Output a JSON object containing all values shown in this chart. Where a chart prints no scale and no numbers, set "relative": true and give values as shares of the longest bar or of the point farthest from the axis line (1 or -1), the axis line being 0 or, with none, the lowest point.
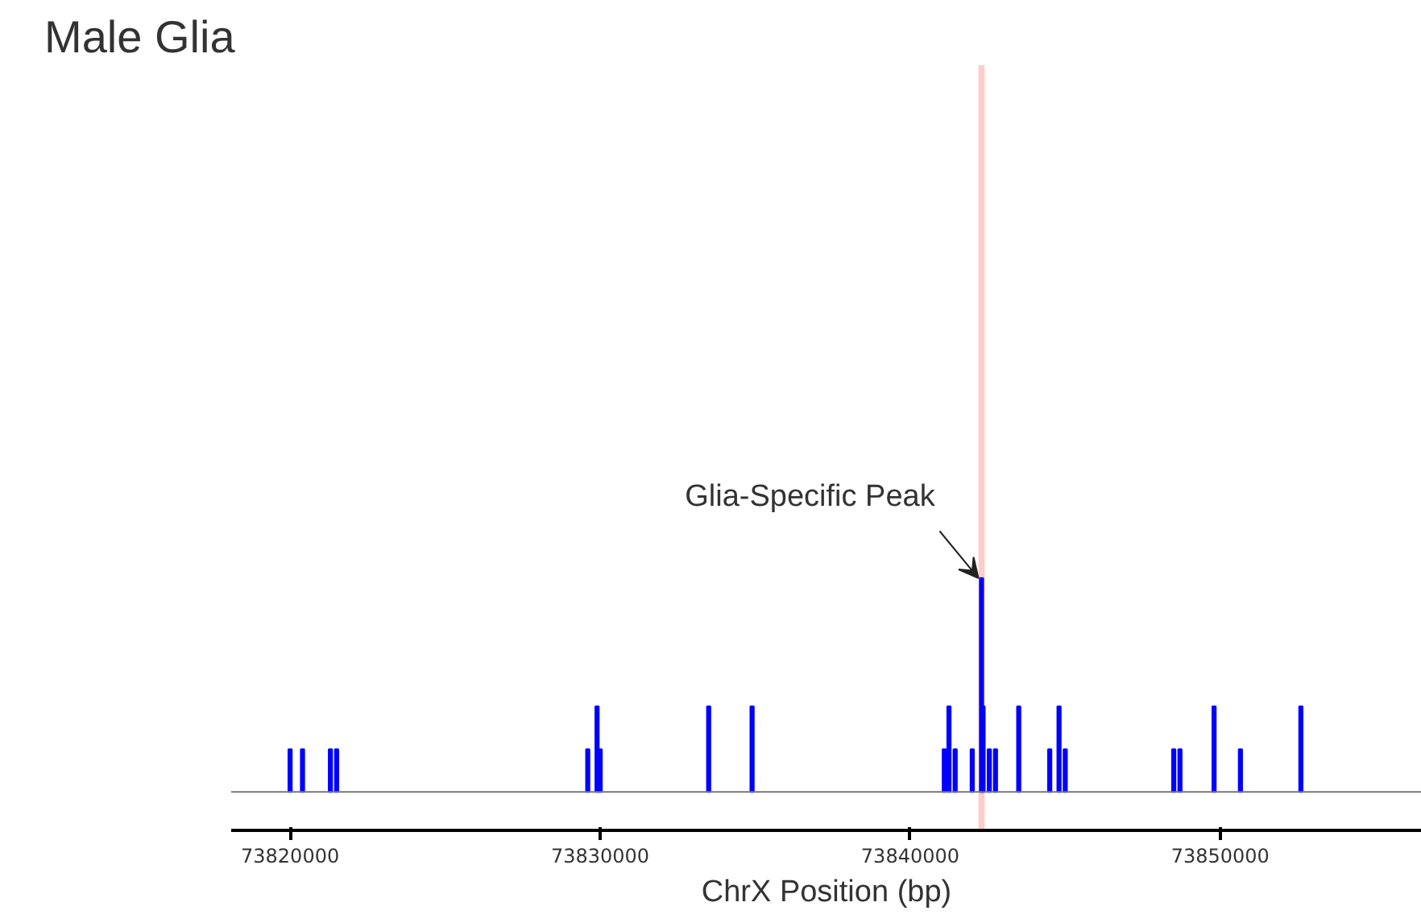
{
  "chart_data": {
    "type": "bar",
    "title": "Male Glia",
    "xlabel": "ChrX Position (bp)",
    "relative": true,
    "x": [
      73820000,
      73820400,
      73821300,
      73821500,
      73829600,
      73829900,
      73830000,
      73833500,
      73834900,
      73841100,
      73841250,
      73841450,
      73842000,
      73842300,
      73842350,
      73842550,
      73842750,
      73843500,
      73844500,
      73844800,
      73845000,
      73848500,
      73848700,
      73849800,
      73850650,
      73852600
    ],
    "values": [
      0.2,
      0.2,
      0.2,
      0.2,
      0.2,
      0.4,
      0.2,
      0.4,
      0.4,
      0.2,
      0.4,
      0.2,
      0.2,
      1,
      0.4,
      0.2,
      0.2,
      0.4,
      0.2,
      0.4,
      0.2,
      0.2,
      0.2,
      0.4,
      0.2,
      0.4
    ],
    "color": "#0000ff",
    "xlim": [
      73818100,
      73856500
    ],
    "xticks": [
      73820000,
      73830000,
      73840000,
      73850000
    ],
    "bands": [
      {
        "axis": "x",
        "from": 73842200,
        "to": 73842400,
        "color": "#ffcccc"
      }
    ],
    "annotations": [
      {
        "text": "Glia-Specific Peak",
        "x": 73842300,
        "y": 1
      }
    ],
    "grid": false
  }
}
